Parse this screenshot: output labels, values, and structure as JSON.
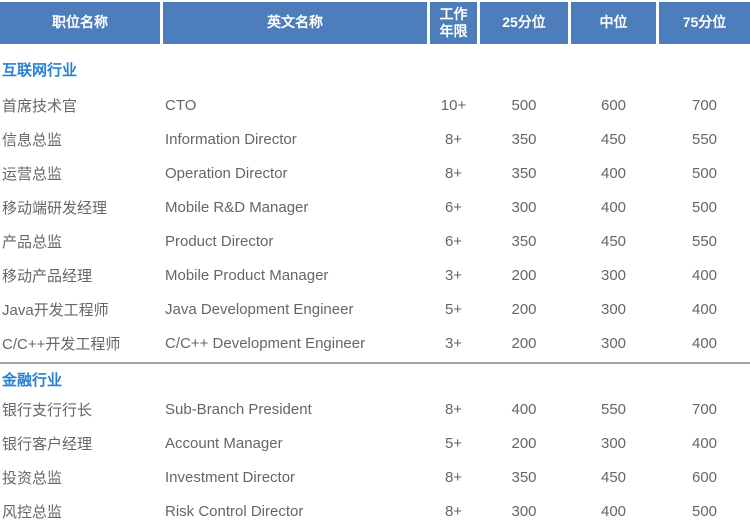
{
  "table": {
    "headers": [
      "职位名称",
      "英文名称",
      "工作年限",
      "25分位",
      "中位",
      "75分位"
    ],
    "sections": [
      {
        "title": "互联网行业",
        "rows": [
          [
            "首席技术官",
            "CTO",
            "10+",
            "500",
            "600",
            "700"
          ],
          [
            "信息总监",
            "Information Director",
            "8+",
            "350",
            "450",
            "550"
          ],
          [
            "运营总监",
            "Operation Director",
            "8+",
            "350",
            "400",
            "500"
          ],
          [
            "移动端研发经理",
            "Mobile R&D Manager",
            "6+",
            "300",
            "400",
            "500"
          ],
          [
            "产品总监",
            "Product Director",
            "6+",
            "350",
            "450",
            "550"
          ],
          [
            "移动产品经理",
            "Mobile Product Manager",
            "3+",
            "200",
            "300",
            "400"
          ],
          [
            "Java开发工程师",
            "Java Development Engineer",
            "5+",
            "200",
            "300",
            "400"
          ],
          [
            "C/C++开发工程师",
            "C/C++ Development Engineer",
            "3+",
            "200",
            "300",
            "400"
          ]
        ]
      },
      {
        "title": "金融行业",
        "rows": [
          [
            "银行支行行长",
            "Sub-Branch President",
            "8+",
            "400",
            "550",
            "700"
          ],
          [
            "银行客户经理",
            "Account Manager",
            "5+",
            "200",
            "300",
            "400"
          ],
          [
            "投资总监",
            "Investment Director",
            "8+",
            "350",
            "450",
            "600"
          ],
          [
            "风控总监",
            "Risk Control Director",
            "8+",
            "300",
            "400",
            "500"
          ]
        ]
      }
    ],
    "colors": {
      "header_bg": "#4d7ebb",
      "header_text": "#ffffff",
      "section_title": "#2b81d1",
      "body_text": "#666666",
      "divider": "#a3a3a3"
    }
  }
}
